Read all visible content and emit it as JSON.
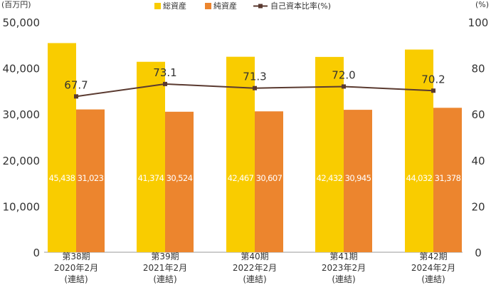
{
  "chart_data": {
    "type": "bar",
    "categories": [
      [
        "第38期",
        "2020年2月",
        "(連結)"
      ],
      [
        "第39期",
        "2021年2月",
        "(連結)"
      ],
      [
        "第40期",
        "2022年2月",
        "(連結)"
      ],
      [
        "第41期",
        "2023年2月",
        "(連結)"
      ],
      [
        "第42期",
        "2024年2月",
        "(連結)"
      ]
    ],
    "series": [
      {
        "name": "総資産",
        "type": "bar",
        "axis": "left",
        "color": "#f9cc00",
        "values": [
          45438,
          41374,
          42467,
          42432,
          44032
        ],
        "labels": [
          "45,438",
          "41,374",
          "42,467",
          "42,432",
          "44,032"
        ]
      },
      {
        "name": "純資産",
        "type": "bar",
        "axis": "left",
        "color": "#ec852e",
        "values": [
          31023,
          30524,
          30607,
          30945,
          31378
        ],
        "labels": [
          "31,023",
          "30,524",
          "30,607",
          "30,945",
          "31,378"
        ]
      },
      {
        "name": "自己資本比率(%)",
        "type": "line",
        "axis": "right",
        "color": "#5a3a30",
        "values": [
          67.7,
          73.1,
          71.3,
          72.0,
          70.2
        ],
        "labels": [
          "67.7",
          "73.1",
          "71.3",
          "72.0",
          "70.2"
        ]
      }
    ],
    "y_left": {
      "unit": "(百万円)",
      "range": [
        0,
        50000
      ],
      "ticks": [
        "0",
        "10,000",
        "20,000",
        "30,000",
        "40,000",
        "50,000"
      ]
    },
    "y_right": {
      "unit": "(%)",
      "range": [
        0,
        100
      ],
      "ticks": [
        "0",
        "20",
        "40",
        "60",
        "80",
        "100"
      ]
    },
    "legend": "top-center",
    "grid": false
  }
}
